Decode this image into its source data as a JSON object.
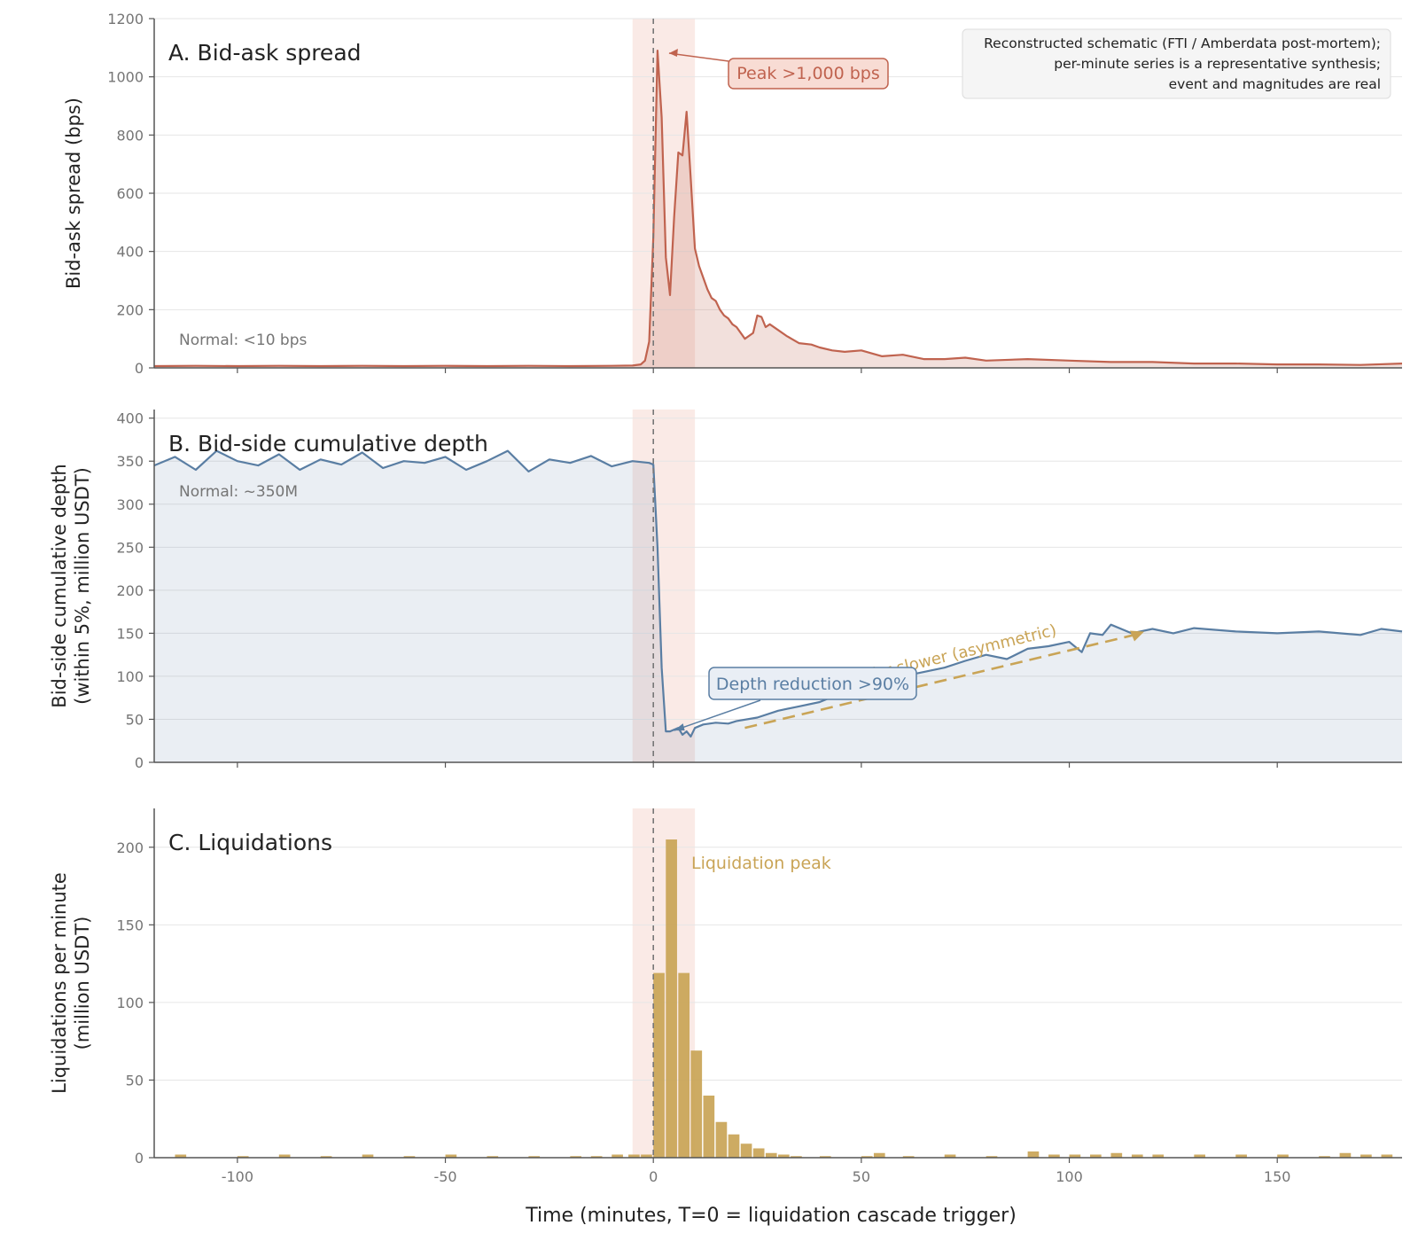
{
  "chart_data": {
    "type": "multi-panel",
    "xlabel": "Time (minutes, T=0 = liquidation cascade trigger)",
    "xlim": [
      -120,
      180
    ],
    "xticks": [
      -100,
      -50,
      0,
      50,
      100,
      150
    ],
    "event_window": [
      -5,
      10
    ],
    "event_line": 0,
    "source_note": [
      "Reconstructed schematic (FTI / Amberdata post-mortem);",
      "per-minute series is a representative synthesis;",
      "event and magnitudes are real"
    ],
    "colors": {
      "spread": "#c0634f",
      "depth": "#5a7ea3",
      "liq": "#c9a456",
      "window": "#f6d9d2"
    },
    "panels": [
      {
        "id": "spread",
        "type": "line",
        "title": "A. Bid-ask spread",
        "ylabel": "Bid-ask spread (bps)",
        "ylim": [
          0,
          1200
        ],
        "yticks": [
          0,
          200,
          400,
          600,
          800,
          1000,
          1200
        ],
        "baseline_note": "Normal: <10 bps",
        "annotation": "Peak >1,000 bps",
        "series": {
          "x": [
            -120,
            -110,
            -100,
            -90,
            -80,
            -70,
            -60,
            -50,
            -40,
            -30,
            -20,
            -10,
            -5,
            -3,
            -2,
            -1,
            0,
            1,
            2,
            3,
            4,
            5,
            6,
            7,
            8,
            9,
            10,
            11,
            12,
            13,
            14,
            15,
            16,
            17,
            18,
            19,
            20,
            22,
            24,
            25,
            26,
            27,
            28,
            30,
            32,
            35,
            38,
            40,
            43,
            46,
            50,
            55,
            60,
            65,
            70,
            75,
            80,
            90,
            100,
            110,
            120,
            130,
            140,
            150,
            160,
            170,
            180
          ],
          "y": [
            6,
            7,
            6,
            7,
            6,
            7,
            6,
            7,
            6,
            7,
            6,
            7,
            8,
            12,
            25,
            90,
            450,
            1090,
            860,
            380,
            250,
            520,
            740,
            730,
            880,
            650,
            410,
            350,
            310,
            270,
            240,
            230,
            200,
            180,
            170,
            150,
            140,
            100,
            120,
            180,
            175,
            140,
            150,
            130,
            110,
            85,
            80,
            70,
            60,
            55,
            60,
            40,
            45,
            30,
            30,
            35,
            25,
            30,
            25,
            20,
            20,
            15,
            15,
            12,
            12,
            10,
            15
          ]
        }
      },
      {
        "id": "depth",
        "type": "line",
        "title": "B. Bid-side cumulative depth",
        "ylabel_lines": [
          "Bid-side cumulative depth",
          "(within 5%, million USDT)"
        ],
        "ylim": [
          0,
          410
        ],
        "yticks": [
          0,
          50,
          100,
          150,
          200,
          250,
          300,
          350,
          400
        ],
        "baseline_note": "Normal: ~350M",
        "annotation": "Depth reduction >90%",
        "recovery_note": "Recovery far slower (asymmetric)",
        "recovery_arrow": {
          "from": [
            22,
            40
          ],
          "to": [
            118,
            152
          ]
        },
        "series": {
          "x": [
            -120,
            -115,
            -110,
            -105,
            -100,
            -95,
            -90,
            -85,
            -80,
            -75,
            -70,
            -65,
            -60,
            -55,
            -50,
            -45,
            -40,
            -35,
            -30,
            -25,
            -20,
            -15,
            -10,
            -5,
            -1,
            0,
            1,
            2,
            3,
            4,
            5,
            6,
            7,
            8,
            9,
            10,
            12,
            15,
            18,
            20,
            25,
            30,
            35,
            40,
            45,
            50,
            55,
            60,
            65,
            70,
            75,
            80,
            85,
            90,
            95,
            100,
            103,
            105,
            108,
            110,
            115,
            120,
            125,
            130,
            140,
            150,
            160,
            170,
            175,
            180
          ],
          "y": [
            345,
            355,
            340,
            362,
            350,
            345,
            358,
            340,
            352,
            346,
            360,
            342,
            350,
            348,
            355,
            340,
            350,
            362,
            338,
            352,
            348,
            356,
            344,
            350,
            348,
            346,
            250,
            110,
            36,
            36,
            38,
            40,
            32,
            36,
            30,
            40,
            44,
            46,
            45,
            48,
            52,
            60,
            65,
            70,
            80,
            88,
            95,
            100,
            105,
            110,
            118,
            125,
            120,
            132,
            135,
            140,
            128,
            150,
            148,
            160,
            150,
            155,
            150,
            156,
            152,
            150,
            152,
            148,
            155,
            152
          ]
        }
      },
      {
        "id": "liquidations",
        "type": "bar",
        "title": "C. Liquidations",
        "ylabel_lines": [
          "Liquidations per minute",
          "(million USDT)"
        ],
        "ylim": [
          0,
          225
        ],
        "yticks": [
          0,
          50,
          100,
          150,
          200
        ],
        "annotation": "Liquidation peak",
        "series": {
          "x": [
            -115,
            -100,
            -90,
            -80,
            -70,
            -60,
            -50,
            -40,
            -30,
            -20,
            -15,
            -10,
            -6,
            -3,
            0,
            3,
            6,
            9,
            12,
            15,
            18,
            21,
            24,
            27,
            30,
            33,
            40,
            50,
            53,
            60,
            70,
            80,
            90,
            95,
            100,
            105,
            110,
            115,
            120,
            130,
            140,
            150,
            160,
            165,
            170,
            175
          ],
          "y": [
            2,
            1,
            2,
            1,
            2,
            1,
            2,
            1,
            1,
            1,
            1,
            2,
            2,
            2,
            119,
            205,
            119,
            69,
            40,
            23,
            15,
            9,
            6,
            3,
            2,
            1,
            1,
            1,
            3,
            1,
            2,
            1,
            4,
            2,
            2,
            2,
            3,
            2,
            2,
            2,
            2,
            2,
            1,
            3,
            2,
            2
          ]
        }
      }
    ]
  }
}
